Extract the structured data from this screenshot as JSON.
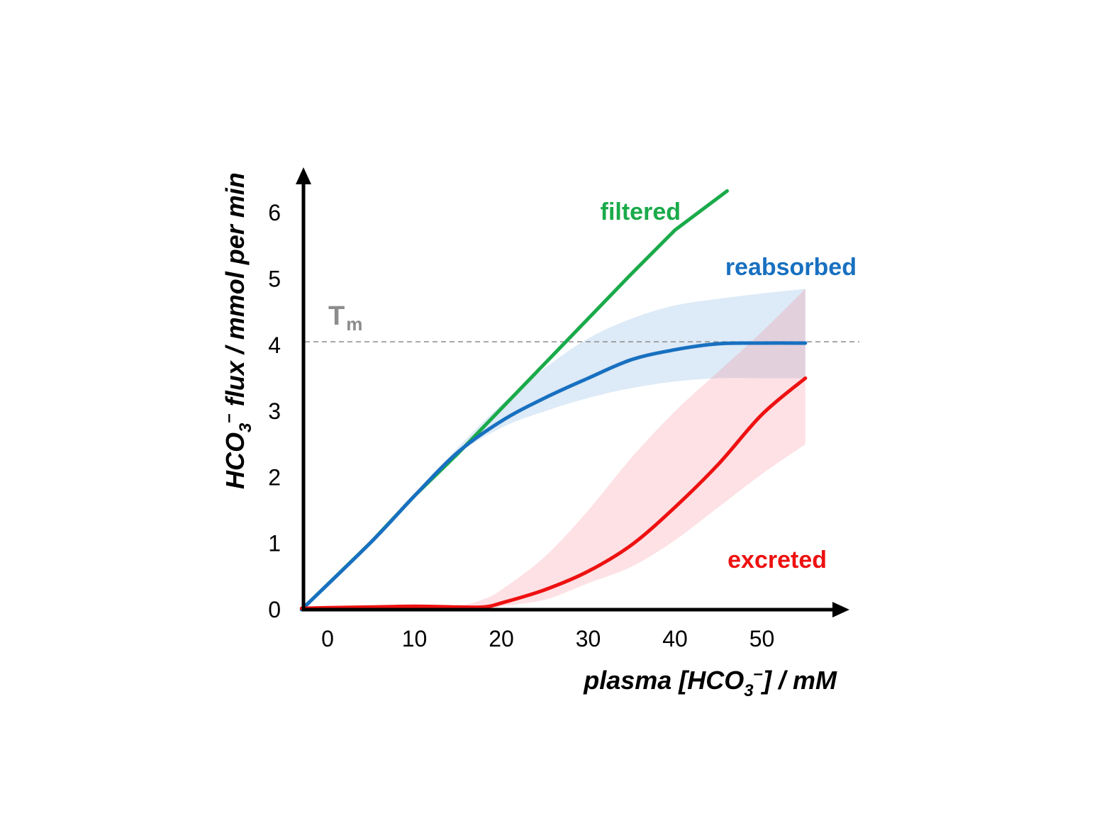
{
  "chart_data": {
    "type": "line",
    "xlabel": {
      "prefix": "plasma [HCO",
      "sub": "3",
      "sup": "–",
      "suffix": "] / mM"
    },
    "ylabel": {
      "prefix": "HCO",
      "sub": "3",
      "sup": "–",
      "suffix": " flux / mmol per min"
    },
    "x_ticks": [
      "0",
      "10",
      "20",
      "30",
      "40",
      "50"
    ],
    "y_ticks": [
      "0",
      "1",
      "2",
      "3",
      "4",
      "5",
      "6"
    ],
    "x_range": [
      -3,
      60
    ],
    "y_range": [
      0,
      6.5
    ],
    "threshold": {
      "label_main": "T",
      "label_sub": "m",
      "value": 4.05,
      "style": "dashed",
      "color": "#8c8c8c"
    },
    "series": [
      {
        "name": "filtered",
        "color": "#1aaa4a",
        "x": [
          -3,
          5,
          10,
          15,
          20,
          25,
          30,
          35,
          40,
          46
        ],
        "y": [
          0,
          1.02,
          1.72,
          2.36,
          3.04,
          3.72,
          4.4,
          5.08,
          5.74,
          6.33
        ]
      },
      {
        "name": "reabsorbed",
        "color": "#1870c0",
        "x": [
          -3,
          5,
          10,
          15,
          20,
          25,
          30,
          35,
          40,
          45,
          50,
          55
        ],
        "y": [
          0,
          1.02,
          1.72,
          2.38,
          2.85,
          3.2,
          3.5,
          3.78,
          3.93,
          4.02,
          4.03,
          4.03
        ],
        "band_upper": [
          0,
          1.02,
          1.72,
          2.45,
          3.1,
          3.65,
          4.1,
          4.4,
          4.6,
          4.7,
          4.78,
          4.85
        ],
        "band_lower": [
          0,
          1.02,
          1.72,
          2.35,
          2.75,
          3.0,
          3.2,
          3.35,
          3.45,
          3.5,
          3.5,
          3.5
        ]
      },
      {
        "name": "excreted",
        "color": "#ee1111",
        "x": [
          -3,
          0,
          5,
          10,
          15,
          18,
          20,
          25,
          30,
          35,
          40,
          45,
          50,
          55
        ],
        "y": [
          0.02,
          0.03,
          0.04,
          0.05,
          0.04,
          0.04,
          0.1,
          0.3,
          0.58,
          0.98,
          1.55,
          2.2,
          2.95,
          3.5
        ],
        "band_upper": [
          0.04,
          0.05,
          0.06,
          0.06,
          0.06,
          0.16,
          0.3,
          0.8,
          1.5,
          2.3,
          3.0,
          3.6,
          4.2,
          4.85
        ],
        "band_lower": [
          0.0,
          0.0,
          0.0,
          0.0,
          0.0,
          0.0,
          0.05,
          0.15,
          0.4,
          0.65,
          1.05,
          1.55,
          2.05,
          2.5
        ]
      }
    ]
  }
}
